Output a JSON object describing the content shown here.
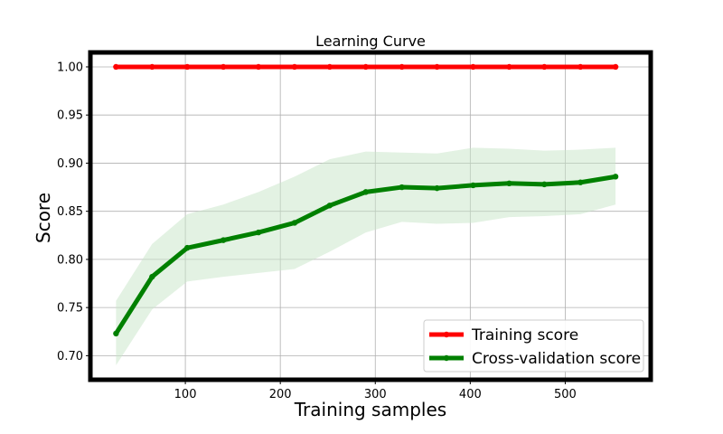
{
  "chart_data": {
    "type": "line",
    "title": "Learning Curve",
    "xlabel": "Training samples",
    "ylabel": "Score",
    "xlim": [
      0,
      590
    ],
    "ylim": [
      0.675,
      1.015
    ],
    "xticks": [
      100,
      200,
      300,
      400,
      500
    ],
    "yticks": [
      0.7,
      0.75,
      0.8,
      0.85,
      0.9,
      0.95,
      1.0
    ],
    "y_tick_labels": [
      "0.70",
      "0.75",
      "0.80",
      "0.85",
      "0.90",
      "0.95",
      "1.00"
    ],
    "grid": true,
    "legend_position": "lower-right",
    "x": [
      27,
      65,
      102,
      140,
      177,
      215,
      252,
      290,
      328,
      365,
      403,
      441,
      478,
      516,
      553
    ],
    "series": [
      {
        "name": "Training score",
        "color": "#ff0000",
        "values": [
          1.0,
          1.0,
          1.0,
          1.0,
          1.0,
          1.0,
          1.0,
          1.0,
          1.0,
          1.0,
          1.0,
          1.0,
          1.0,
          1.0,
          1.0
        ],
        "band_upper": [
          1.0,
          1.0,
          1.0,
          1.0,
          1.0,
          1.0,
          1.0,
          1.0,
          1.0,
          1.0,
          1.0,
          1.0,
          1.0,
          1.0,
          1.0
        ],
        "band_lower": [
          1.0,
          1.0,
          1.0,
          1.0,
          1.0,
          1.0,
          1.0,
          1.0,
          1.0,
          1.0,
          1.0,
          1.0,
          1.0,
          1.0,
          1.0
        ]
      },
      {
        "name": "Cross-validation score",
        "color": "#008000",
        "band_color": "#c8e6c8",
        "values": [
          0.723,
          0.782,
          0.812,
          0.82,
          0.828,
          0.838,
          0.856,
          0.87,
          0.875,
          0.874,
          0.877,
          0.879,
          0.878,
          0.88,
          0.886
        ],
        "band_upper": [
          0.757,
          0.816,
          0.847,
          0.857,
          0.87,
          0.886,
          0.904,
          0.912,
          0.911,
          0.91,
          0.916,
          0.915,
          0.913,
          0.914,
          0.916
        ],
        "band_lower": [
          0.69,
          0.748,
          0.777,
          0.782,
          0.786,
          0.79,
          0.808,
          0.828,
          0.839,
          0.837,
          0.838,
          0.844,
          0.845,
          0.847,
          0.857
        ]
      }
    ]
  }
}
